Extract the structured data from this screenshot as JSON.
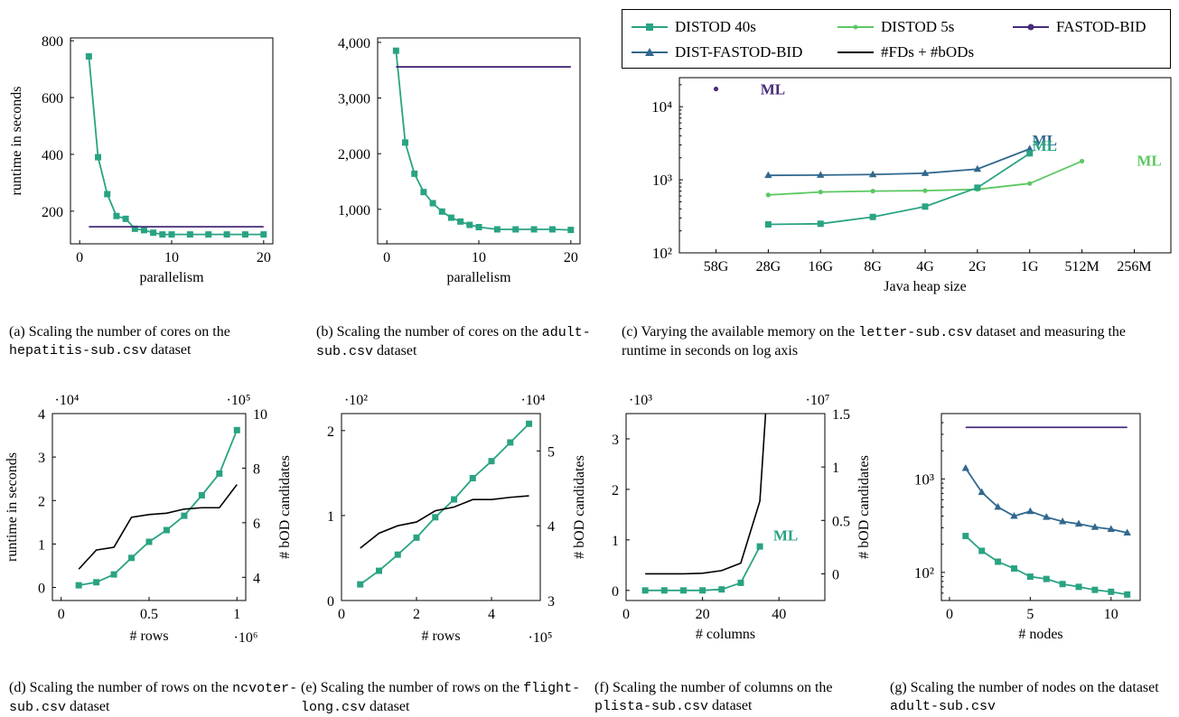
{
  "colors": {
    "distod40": "#29A383",
    "distod5": "#5CC863",
    "fastod": "#472C7A",
    "distfastod": "#31688E",
    "fds": "#000000"
  },
  "legend": {
    "distod40": "DISTOD 40s",
    "distod5": "DISTOD 5s",
    "fastod": "FASTOD-BID",
    "distfastod": "DIST-FASTOD-BID",
    "fds": "#FDs + #bODs"
  },
  "captions": {
    "a": {
      "pre": "(a) Scaling the number of cores on the ",
      "mono": "hepatitis-sub.csv",
      "post": " dataset"
    },
    "b": {
      "pre": "(b) Scaling the number of cores on the ",
      "mono": "adult-sub.csv",
      "post": " dataset"
    },
    "c": {
      "pre": "(c) Varying the available memory on the ",
      "mono": "letter-sub.csv",
      "post": " dataset and measuring the runtime in seconds on log axis"
    },
    "d": {
      "pre": "(d) Scaling the number of rows on the ",
      "mono": "ncvoter-sub.csv",
      "post": " dataset"
    },
    "e": {
      "pre": "(e) Scaling the number of rows on the ",
      "mono": "flight-long.csv",
      "post": " dataset"
    },
    "f": {
      "pre": "(f) Scaling the number of columns on the ",
      "mono": "plista-sub.csv",
      "post": " dataset"
    },
    "g": {
      "pre": "(g) Scaling the number of nodes on the dataset ",
      "mono": "adult-sub.csv",
      "post": ""
    }
  },
  "chart_data": [
    {
      "id": "a",
      "type": "line",
      "xlabel": "parallelism",
      "ylabel": "runtime in seconds",
      "xlim": [
        -1,
        21
      ],
      "ylim": [
        85,
        810
      ],
      "xticks": [
        0,
        10,
        20
      ],
      "yticks": [
        200,
        400,
        600,
        800
      ],
      "series": [
        {
          "name": "DISTOD 40s",
          "marker": "square",
          "color": "distod40",
          "x": [
            1,
            2,
            3,
            4,
            5,
            6,
            7,
            8,
            9,
            10,
            12,
            14,
            16,
            18,
            20
          ],
          "y": [
            745,
            390,
            260,
            183,
            173,
            138,
            133,
            124,
            118,
            118,
            118,
            118,
            118,
            118,
            118
          ]
        },
        {
          "name": "FASTOD-BID",
          "marker": "none",
          "color": "fastod",
          "x": [
            1,
            20
          ],
          "y": [
            145,
            145
          ]
        }
      ]
    },
    {
      "id": "b",
      "type": "line",
      "xlabel": "parallelism",
      "ylabel": "",
      "xlim": [
        -1,
        21
      ],
      "ylim": [
        380,
        4080
      ],
      "xticks": [
        0,
        10,
        20
      ],
      "yticks": [
        1000,
        2000,
        3000,
        4000
      ],
      "ytick_labels": [
        "1,000",
        "2,000",
        "3,000",
        "4,000"
      ],
      "series": [
        {
          "name": "DISTOD 40s",
          "marker": "square",
          "color": "distod40",
          "x": [
            1,
            2,
            3,
            4,
            5,
            6,
            7,
            8,
            9,
            10,
            12,
            14,
            16,
            18,
            20
          ],
          "y": [
            3850,
            2200,
            1640,
            1310,
            1110,
            960,
            850,
            780,
            720,
            680,
            640,
            640,
            640,
            640,
            630
          ]
        },
        {
          "name": "FASTOD-BID",
          "marker": "none",
          "color": "fastod",
          "x": [
            1,
            20
          ],
          "y": [
            3560,
            3560
          ]
        }
      ]
    },
    {
      "id": "c",
      "type": "line",
      "log_y": true,
      "xlabel": "Java heap size",
      "ylabel": "",
      "categories": [
        "58G",
        "28G",
        "16G",
        "8G",
        "4G",
        "2G",
        "1G",
        "512M",
        "256M"
      ],
      "xlim": [
        -0.7,
        8.7
      ],
      "ylim": [
        100,
        25000
      ],
      "yticks": [
        100,
        1000,
        10000
      ],
      "series": [
        {
          "name": "DIST-FASTOD-BID",
          "marker": "triangle",
          "color": "distfastod",
          "x": [
            1,
            2,
            3,
            4,
            5,
            6
          ],
          "y": [
            1150,
            1160,
            1180,
            1230,
            1400,
            2650
          ]
        },
        {
          "name": "DISTOD 5s",
          "marker": "dot",
          "color": "distod5",
          "x": [
            1,
            2,
            3,
            4,
            5,
            6,
            7
          ],
          "y": [
            620,
            680,
            700,
            710,
            740,
            890,
            1800
          ]
        },
        {
          "name": "DISTOD 40s",
          "marker": "square",
          "color": "distod40",
          "x": [
            1,
            2,
            3,
            4,
            5,
            6
          ],
          "y": [
            245,
            250,
            310,
            430,
            780,
            2300
          ]
        },
        {
          "name": "FASTOD-BID",
          "marker": "dot",
          "color": "fastod",
          "x": [
            0
          ],
          "y": [
            17500
          ]
        }
      ],
      "annotations": [
        {
          "text": "ML",
          "color": "fastod",
          "x": 0.85,
          "y": 17500
        },
        {
          "text": "ML",
          "color": "distfastod",
          "x": 6.05,
          "y": 3500
        },
        {
          "text": "ML",
          "color": "distod40",
          "x": 6.05,
          "y": 2950
        },
        {
          "text": "ML",
          "color": "distod5",
          "x": 8.05,
          "y": 1850
        }
      ]
    },
    {
      "id": "d",
      "type": "line",
      "dual_axis": true,
      "xlabel": "# rows",
      "ylabel": "runtime in seconds",
      "y2label": "# bOD candidates",
      "xlim": [
        -0.05,
        1.05
      ],
      "ylim": [
        -0.3,
        4.0
      ],
      "y2lim": [
        3.15,
        10.0
      ],
      "xticks": [
        0,
        0.5,
        1
      ],
      "xtick_labels": [
        "0",
        "0.5",
        "1"
      ],
      "x_multiplier": "·10⁶",
      "yticks": [
        0,
        1,
        2,
        3,
        4
      ],
      "y_multiplier": "·10⁴",
      "y2ticks": [
        4,
        6,
        8,
        10
      ],
      "y2_multiplier": "·10⁵",
      "series": [
        {
          "name": "DISTOD 40s",
          "marker": "square",
          "color": "distod40",
          "axis": "left",
          "x": [
            0.1,
            0.2,
            0.3,
            0.4,
            0.5,
            0.6,
            0.7,
            0.8,
            0.9,
            1.0
          ],
          "y": [
            0.05,
            0.12,
            0.3,
            0.68,
            1.05,
            1.32,
            1.65,
            2.12,
            2.62,
            3.62
          ]
        },
        {
          "name": "#FDs + #bODs",
          "marker": "none",
          "color": "fds",
          "axis": "right",
          "x": [
            0.1,
            0.2,
            0.3,
            0.4,
            0.5,
            0.6,
            0.7,
            0.8,
            0.9,
            1.0
          ],
          "y": [
            4.3,
            5.0,
            5.1,
            6.2,
            6.3,
            6.35,
            6.5,
            6.55,
            6.55,
            7.4
          ]
        }
      ]
    },
    {
      "id": "e",
      "type": "line",
      "dual_axis": true,
      "xlabel": "# rows",
      "ylabel": "",
      "y2label": "# bOD candidates",
      "xlim": [
        0,
        5.3
      ],
      "ylim": [
        0,
        2.2
      ],
      "y2lim": [
        3.0,
        5.5
      ],
      "xticks": [
        0,
        2,
        4
      ],
      "x_multiplier": "·10⁵",
      "yticks": [
        0,
        1,
        2
      ],
      "y_multiplier": "·10²",
      "y2ticks": [
        3,
        4,
        5
      ],
      "y2_multiplier": "·10⁴",
      "series": [
        {
          "name": "DISTOD 40s",
          "marker": "square",
          "color": "distod40",
          "axis": "left",
          "x": [
            0.5,
            1.0,
            1.5,
            2.0,
            2.5,
            3.0,
            3.5,
            4.0,
            4.5,
            5.0
          ],
          "y": [
            0.19,
            0.35,
            0.54,
            0.74,
            0.98,
            1.19,
            1.44,
            1.64,
            1.86,
            2.08
          ]
        },
        {
          "name": "#FDs + #bODs",
          "marker": "none",
          "color": "fds",
          "axis": "right",
          "x": [
            0.5,
            1.0,
            1.5,
            2.0,
            2.5,
            3.0,
            3.5,
            4.0,
            4.5,
            5.0
          ],
          "y": [
            3.7,
            3.9,
            4.0,
            4.05,
            4.2,
            4.25,
            4.35,
            4.35,
            4.38,
            4.4
          ]
        }
      ]
    },
    {
      "id": "f",
      "type": "line",
      "dual_axis": true,
      "xlabel": "# columns",
      "ylabel": "",
      "y2label": "# bOD candidates",
      "xlim": [
        0,
        52
      ],
      "ylim": [
        -0.2,
        3.5
      ],
      "y2lim": [
        -0.25,
        1.5
      ],
      "xticks": [
        0,
        20,
        40
      ],
      "y_multiplier": "·10³",
      "yticks": [
        0,
        1,
        2,
        3
      ],
      "y2ticks": [
        0,
        0.5,
        1,
        1.5
      ],
      "y2tick_labels": [
        "0",
        "0.5",
        "1",
        "1.5"
      ],
      "y2_multiplier": "·10⁷",
      "series": [
        {
          "name": "DISTOD 40s",
          "marker": "square",
          "color": "distod40",
          "axis": "left",
          "x": [
            5,
            10,
            15,
            20,
            25,
            30,
            35
          ],
          "y": [
            0,
            0,
            0,
            0,
            0.02,
            0.15,
            0.87
          ]
        },
        {
          "name": "#FDs + #bODs",
          "marker": "none",
          "color": "fds",
          "axis": "right",
          "x": [
            5,
            10,
            15,
            20,
            25,
            30,
            35,
            36.5
          ],
          "y": [
            0.0,
            0.0,
            0.0,
            0.005,
            0.03,
            0.1,
            0.68,
            1.6
          ]
        }
      ],
      "annotations": [
        {
          "text": "ML",
          "color": "distod40",
          "x": 38.5,
          "y": 1.1
        }
      ]
    },
    {
      "id": "g",
      "type": "line",
      "log_y": true,
      "xlabel": "# nodes",
      "ylabel": "",
      "xlim": [
        -0.5,
        11.8
      ],
      "ylim": [
        50,
        5000
      ],
      "xticks": [
        0,
        5,
        10
      ],
      "yticks": [
        100,
        1000
      ],
      "series": [
        {
          "name": "FASTOD-BID",
          "marker": "none",
          "color": "fastod",
          "x": [
            1,
            11
          ],
          "y": [
            3560,
            3560
          ]
        },
        {
          "name": "DIST-FASTOD-BID",
          "marker": "triangle",
          "color": "distfastod",
          "x": [
            1,
            2,
            3,
            4,
            5,
            6,
            7,
            8,
            9,
            10,
            11
          ],
          "y": [
            1300,
            720,
            500,
            400,
            450,
            390,
            350,
            330,
            305,
            290,
            265
          ]
        },
        {
          "name": "DISTOD 40s",
          "marker": "square",
          "color": "distod40",
          "x": [
            1,
            2,
            3,
            4,
            5,
            6,
            7,
            8,
            9,
            10,
            11
          ],
          "y": [
            245,
            170,
            130,
            110,
            90,
            85,
            75,
            70,
            65,
            62,
            58
          ]
        }
      ]
    }
  ]
}
